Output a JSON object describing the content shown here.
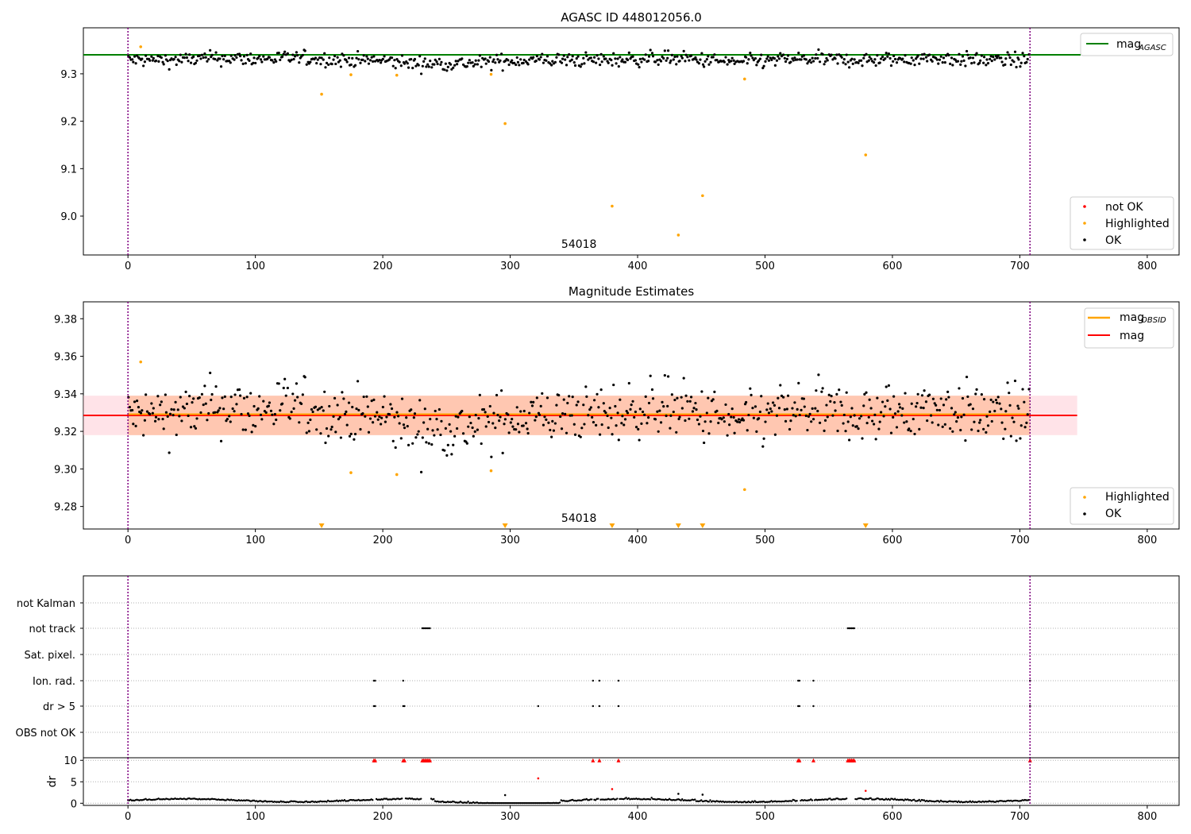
{
  "colors": {
    "ok": "#000000",
    "not_ok": "#ff0000",
    "highlighted": "#ffa500",
    "agasc_line": "#008000",
    "mag_line": "#ff0000",
    "obsid_line": "#ffa500",
    "band_red": "#ffc0cb",
    "band_orange": "#ffb48c",
    "obs_boundary": "#800080",
    "grid": "#b0b0b0"
  },
  "chart_data": [
    {
      "type": "scatter",
      "title": "AGASC ID 448012056.0",
      "xlim": [
        -35,
        825
      ],
      "ylim": [
        8.918,
        9.397
      ],
      "xticks": [
        0,
        100,
        200,
        300,
        400,
        500,
        600,
        700,
        800
      ],
      "yticks": [
        9.0,
        9.1,
        9.2,
        9.3
      ],
      "ytick_labels": [
        "9.0",
        "9.1",
        "9.2",
        "9.3"
      ],
      "obs_boundaries": [
        0,
        708
      ],
      "obsid_label": {
        "text": "54018",
        "x": 354
      },
      "hlines": [
        {
          "name": "magAGASC",
          "y": 9.34,
          "x0": -35,
          "x1": 825
        }
      ],
      "highlighted": {
        "name": "Highlighted",
        "x": [
          10,
          152,
          175,
          211,
          285,
          296,
          380,
          432,
          451,
          484,
          579
        ],
        "y": [
          9.357,
          9.257,
          9.298,
          9.297,
          9.299,
          9.195,
          9.021,
          8.96,
          9.043,
          9.289,
          9.129
        ]
      },
      "legend_upper": [
        {
          "label": "mag",
          "sub": "AGASC",
          "kind": "line",
          "color": "#008000"
        }
      ],
      "legend_lower": [
        {
          "label": "not OK",
          "kind": "dot",
          "color": "#ff0000"
        },
        {
          "label": "Highlighted",
          "kind": "dot",
          "color": "#ffa500"
        },
        {
          "label": "OK",
          "kind": "dot",
          "color": "#000000"
        }
      ],
      "ok_series": {
        "name": "OK",
        "n": 708,
        "center": 9.329,
        "spread": 0.01,
        "ymin": 9.3,
        "ymax": 9.358
      }
    },
    {
      "type": "scatter",
      "title": "Magnitude Estimates",
      "xlim": [
        -35,
        825
      ],
      "ylim": [
        9.268,
        9.389
      ],
      "xticks": [
        0,
        100,
        200,
        300,
        400,
        500,
        600,
        700,
        800
      ],
      "yticks": [
        9.28,
        9.3,
        9.32,
        9.34,
        9.36,
        9.38
      ],
      "ytick_labels": [
        "9.28",
        "9.30",
        "9.32",
        "9.34",
        "9.36",
        "9.38"
      ],
      "obs_boundaries": [
        0,
        708
      ],
      "obsid_label": {
        "text": "54018",
        "x": 354
      },
      "mag": 9.3285,
      "mag_band": [
        9.318,
        9.339
      ],
      "band_x": [
        -35,
        745
      ],
      "obsid_line": {
        "name": "magOBSID",
        "x0": 0,
        "x1": 708,
        "y": 9.3285
      },
      "highlighted": {
        "name": "Highlighted",
        "x": [
          10,
          175,
          211,
          285,
          484
        ],
        "y": [
          9.357,
          9.298,
          9.297,
          9.299,
          9.289
        ]
      },
      "below_axis_markers": [
        152,
        296,
        380,
        432,
        451,
        579
      ],
      "legend_upper": [
        {
          "label": "mag",
          "sub": "OBSID",
          "kind": "line",
          "color": "#ffa500"
        },
        {
          "label": "mag",
          "sub": "",
          "kind": "line",
          "color": "#ff0000"
        }
      ],
      "legend_lower": [
        {
          "label": "Highlighted",
          "kind": "dot",
          "color": "#ffa500"
        },
        {
          "label": "OK",
          "kind": "dot",
          "color": "#000000"
        }
      ]
    },
    {
      "type": "scatter",
      "title": "",
      "xlim": [
        -35,
        825
      ],
      "flag_rows": [
        "not Kalman",
        "not track",
        "Sat. pixel.",
        "Ion. rad.",
        "dr > 5",
        "OBS not OK"
      ],
      "flag_points": {
        "not Kalman": [],
        "not track": [
          231,
          232,
          233,
          234,
          235,
          236,
          237,
          565,
          566,
          567,
          568,
          569,
          570
        ],
        "Sat. pixel.": [],
        "Ion. rad.": [
          193,
          194,
          216,
          365,
          370,
          385,
          526,
          527,
          538,
          708
        ],
        "dr > 5": [
          193,
          194,
          216,
          217,
          322,
          365,
          370,
          385,
          526,
          527,
          538,
          708
        ],
        "OBS not OK": []
      },
      "obs_boundaries": [
        0,
        708
      ]
    },
    {
      "type": "scatter",
      "title": "",
      "ylabel": "dr",
      "xlim": [
        -35,
        825
      ],
      "ylim": [
        -0.5,
        10.6
      ],
      "xticks": [
        0,
        100,
        200,
        300,
        400,
        500,
        600,
        700,
        800
      ],
      "yticks": [
        0,
        5,
        10
      ],
      "ytick_labels": [
        "0",
        "5",
        "10"
      ],
      "clipped_value": 10,
      "clipped_x": [
        193,
        194,
        216,
        217,
        231,
        232,
        233,
        234,
        235,
        236,
        237,
        365,
        370,
        385,
        526,
        527,
        538,
        565,
        566,
        567,
        568,
        569,
        570,
        708
      ],
      "red_points": {
        "x": [
          322,
          380,
          579
        ],
        "y": [
          5.8,
          3.3,
          2.9
        ]
      },
      "black_outliers": {
        "x": [
          296,
          432,
          451
        ],
        "y": [
          1.9,
          2.2,
          2.0
        ]
      },
      "obs_boundaries": [
        0,
        708
      ]
    }
  ]
}
